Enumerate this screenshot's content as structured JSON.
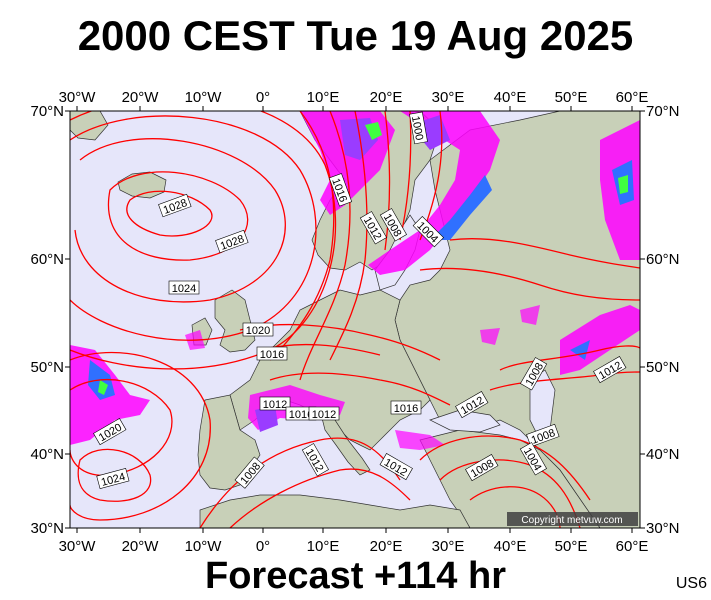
{
  "title": "2000 CEST Tue 19 Aug 2025",
  "footer": "Forecast +114 hr",
  "code": "US6",
  "copyright": "Copyright metvuw.com",
  "lon_labels": [
    "30°W",
    "20°W",
    "10°W",
    "0°",
    "10°E",
    "20°E",
    "30°E",
    "40°E",
    "50°E",
    "60°E"
  ],
  "lat_labels": [
    "70°N",
    "60°N",
    "50°N",
    "40°N",
    "30°N"
  ],
  "isobar_labels": [
    "1028",
    "1028",
    "1024",
    "1020",
    "1016",
    "1012",
    "1016",
    "1012",
    "1016",
    "1012",
    "1012",
    "1008",
    "1008",
    "1012",
    "1004",
    "1008",
    "1016",
    "1012",
    "1008",
    "1004",
    "1000",
    "1020",
    "1024",
    "1008",
    "1012"
  ],
  "colors": {
    "sea": "#e6e6fa",
    "land": "#c8d0b8",
    "isobar": "#ff0000",
    "rain_light": "#ff00ff",
    "rain_mid": "#9a3cff",
    "rain_heavy": "#3070ff",
    "rain_max": "#40ff40"
  }
}
